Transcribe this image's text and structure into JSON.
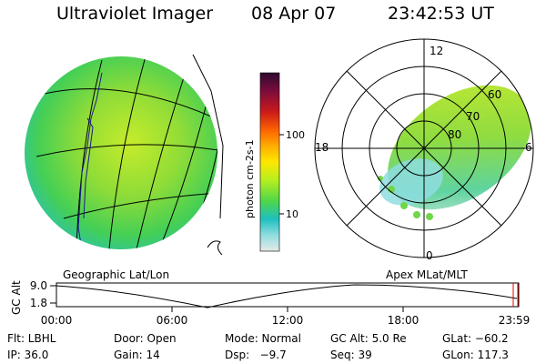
{
  "header": {
    "title": "Ultraviolet Imager",
    "date": "08 Apr 07",
    "time": "23:42:53 UT"
  },
  "left_panel": {
    "caption": "Geographic Lat/Lon"
  },
  "right_panel": {
    "caption": "Apex MLat/MLT",
    "lat_labels": [
      "60",
      "70",
      "80"
    ],
    "mlt_labels": {
      "top": "12",
      "left": "18",
      "right": "6",
      "bottom": "0"
    }
  },
  "colorbar": {
    "label": "photon cm-2s-1",
    "tick_labels": [
      "100",
      "10"
    ],
    "colors": [
      "#2d0a2e",
      "#7a0c3c",
      "#cc1a1a",
      "#ff6a00",
      "#ffb400",
      "#ffe700",
      "#b8ef1e",
      "#4fd64a",
      "#1fbfbf",
      "#8fdde0",
      "#e8e8e8"
    ]
  },
  "altitude_plot": {
    "y_title": "GC Alt",
    "y_ticks": [
      "9.0",
      "1.8"
    ],
    "x_ticks": [
      "00:00",
      "06:00",
      "12:00",
      "18:00",
      "23:59"
    ]
  },
  "info": {
    "row1": [
      "Flt: LBHL",
      "Door: Open",
      "Mode: Normal",
      "GC Alt: 5.0 Re",
      "GLat: −60.2"
    ],
    "row2": [
      "IP: 36.0",
      "Gain: 14",
      "Dsp:   −9.7",
      "Seq: 39",
      "GLon: 117.3"
    ]
  }
}
